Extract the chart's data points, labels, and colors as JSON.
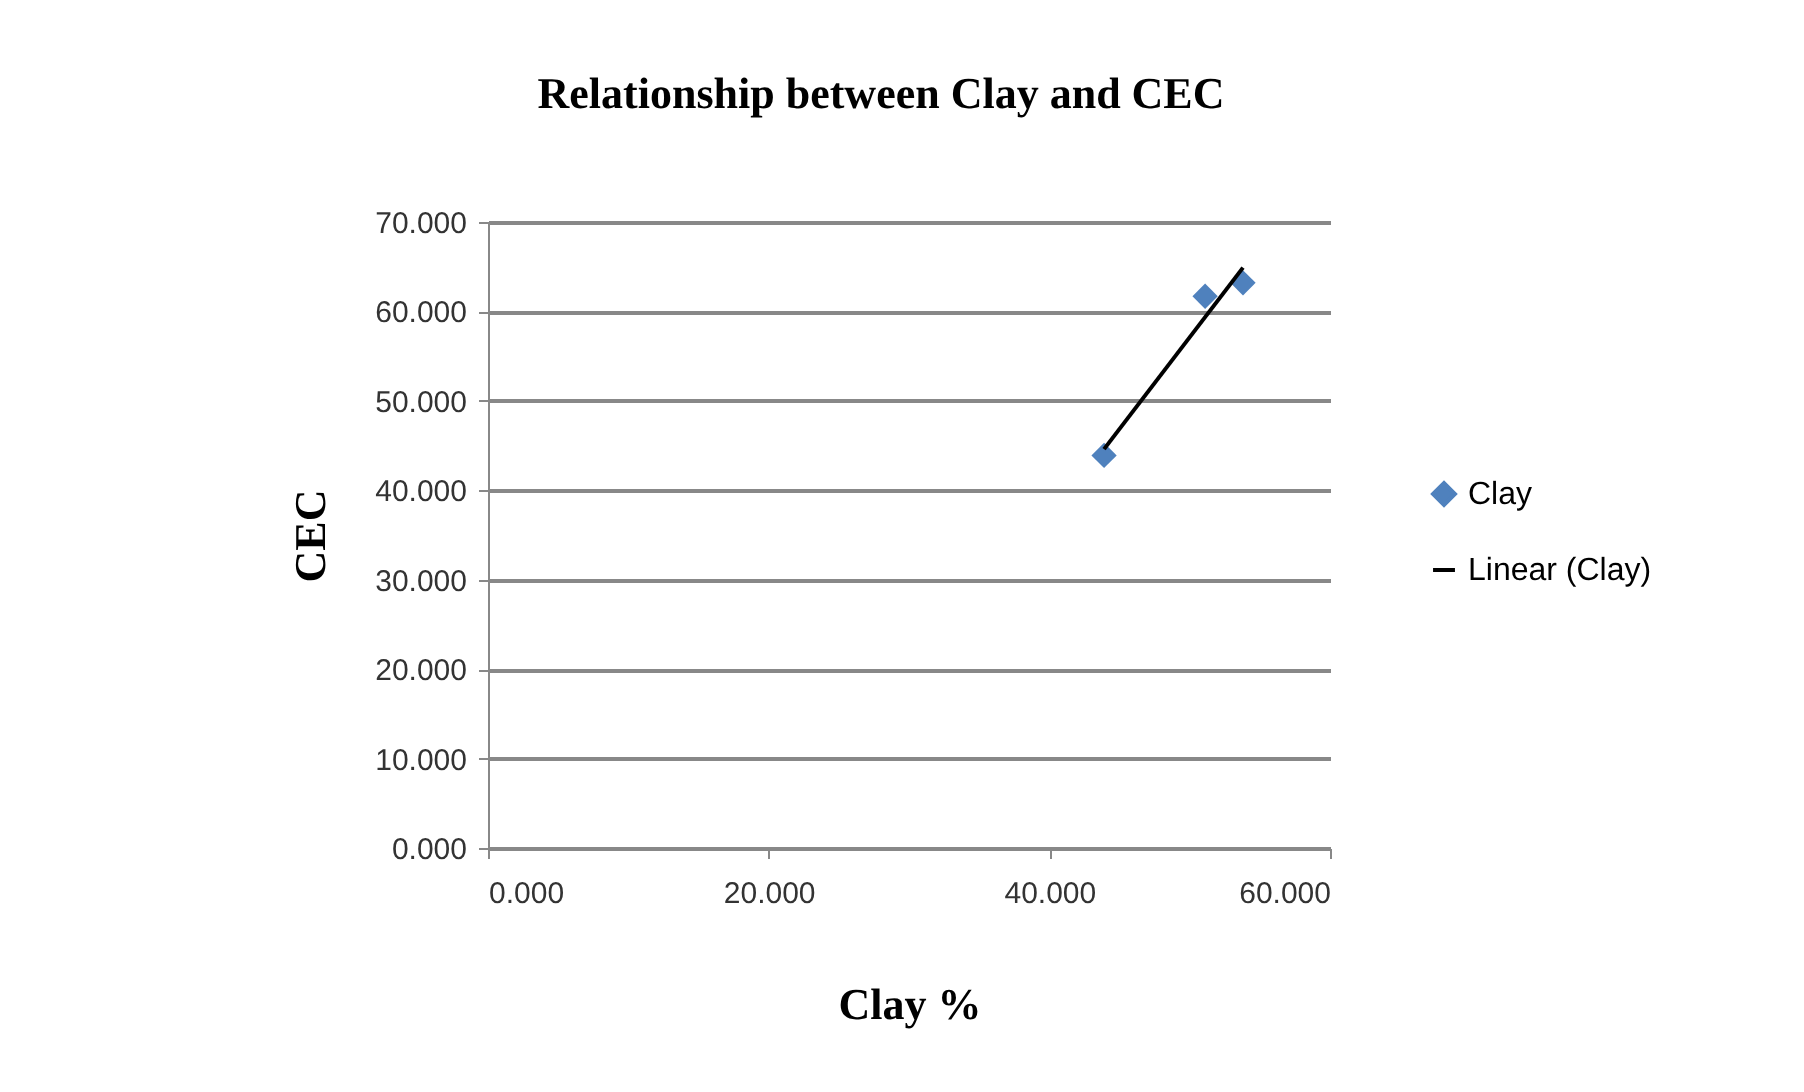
{
  "chart_data": {
    "type": "scatter",
    "title": "Relationship between Clay and CEC",
    "xlabel": "Clay %",
    "ylabel": "CEC",
    "xlim": [
      0,
      60
    ],
    "xticks": [
      {
        "value": 0,
        "label": "0.000"
      },
      {
        "value": 20,
        "label": "20.000"
      },
      {
        "value": 40,
        "label": "40.000"
      },
      {
        "value": 60,
        "label": "60.000"
      }
    ],
    "ylim": [
      0,
      70
    ],
    "yticks": [
      {
        "value": 0,
        "label": "0.000"
      },
      {
        "value": 10,
        "label": "10.000"
      },
      {
        "value": 20,
        "label": "20.000"
      },
      {
        "value": 30,
        "label": "30.000"
      },
      {
        "value": 40,
        "label": "40.000"
      },
      {
        "value": 50,
        "label": "50.000"
      },
      {
        "value": 60,
        "label": "60.000"
      },
      {
        "value": 70,
        "label": "70.000"
      }
    ],
    "grid": "y",
    "legend": "right",
    "marker": "diamond",
    "series": [
      {
        "name": "Clay",
        "color": "#4f81bd",
        "x": [
          43.9,
          51.1,
          53.8
        ],
        "values": [
          43.9,
          61.7,
          63.2
        ]
      },
      {
        "name": "Linear (Clay)",
        "type": "line",
        "color": "#000000",
        "line_style": "solid",
        "marker": "none",
        "x": [
          43.9,
          53.8
        ],
        "values": [
          44.6,
          64.9
        ]
      }
    ]
  }
}
